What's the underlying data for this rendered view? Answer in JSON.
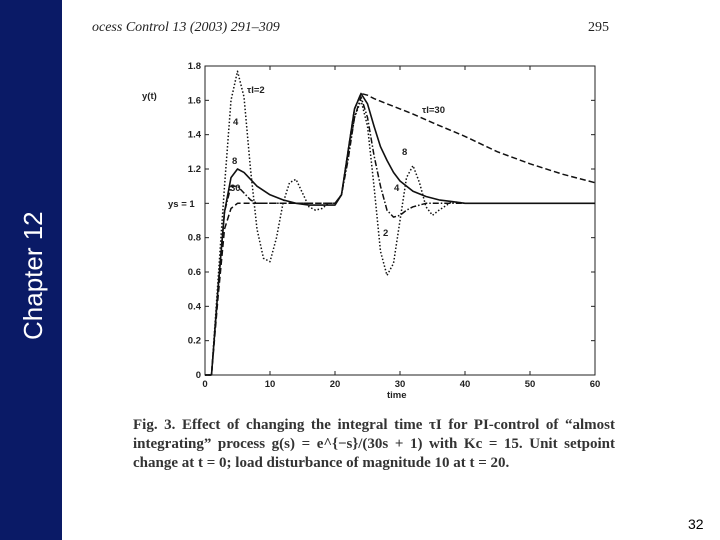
{
  "sidebar": {
    "chapter_label": "Chapter 12",
    "color": "#0a1a66"
  },
  "header": {
    "journal": "ocess Control 13 (2003) 291–309",
    "page": "295"
  },
  "figure": {
    "caption": "Fig. 3. Effect of changing the integral time τI for PI-control of “almost integrating” process g(s) = e^{−s}/(30s + 1) with Kc = 15. Unit setpoint change at t = 0; load disturbance of magnitude 10 at t = 20.",
    "chart_data": {
      "type": "line",
      "xlabel": "time",
      "ylabel": "y(t)",
      "ys_label": "ys = 1",
      "xlim": [
        0,
        60
      ],
      "ylim": [
        0,
        1.8
      ],
      "xticks": [
        "0",
        "10",
        "20",
        "30",
        "40",
        "50",
        "60"
      ],
      "yticks": [
        "0",
        "0.2",
        "0.4",
        "0.6",
        "0.8",
        "1",
        "1.2",
        "1.4",
        "1.6",
        "1.8"
      ],
      "annotations": [
        "τI=2",
        "4",
        "8",
        "30",
        "τI=30",
        "8",
        "4",
        "2"
      ],
      "series": [
        {
          "name": "τI=2",
          "style": "dotted",
          "x": [
            0,
            1,
            2,
            3,
            4,
            5,
            6,
            7,
            8,
            9,
            10,
            11,
            12,
            13,
            14,
            15,
            16,
            17,
            18,
            19,
            20,
            21,
            22,
            23,
            24,
            25,
            26,
            27,
            28,
            29,
            30,
            31,
            32,
            33,
            34,
            35,
            36,
            38,
            40,
            45,
            50,
            55,
            60
          ],
          "y": [
            0,
            0,
            0.55,
            1.1,
            1.6,
            1.77,
            1.62,
            1.2,
            0.85,
            0.68,
            0.66,
            0.8,
            1.0,
            1.12,
            1.14,
            1.06,
            0.98,
            0.96,
            0.97,
            1.0,
            1.0,
            1.05,
            1.28,
            1.5,
            1.6,
            1.45,
            1.1,
            0.72,
            0.58,
            0.65,
            0.9,
            1.15,
            1.22,
            1.12,
            0.98,
            0.93,
            0.96,
            1.01,
            1.0,
            1.0,
            1.0,
            1.0,
            1.0
          ]
        },
        {
          "name": "4",
          "style": "dashdot",
          "x": [
            0,
            1,
            2,
            3,
            4,
            5,
            6,
            7,
            8,
            9,
            10,
            12,
            14,
            16,
            18,
            20,
            21,
            22,
            23,
            24,
            25,
            26,
            27,
            28,
            29,
            30,
            31,
            32,
            33,
            34,
            36,
            38,
            40,
            45,
            50,
            55,
            60
          ],
          "y": [
            0,
            0,
            0.5,
            0.95,
            1.1,
            1.1,
            1.06,
            1.02,
            1.0,
            1.0,
            1.0,
            1.0,
            1.0,
            1.0,
            1.0,
            1.0,
            1.05,
            1.25,
            1.5,
            1.62,
            1.5,
            1.28,
            1.1,
            0.96,
            0.92,
            0.93,
            0.96,
            0.98,
            0.99,
            1.0,
            1.0,
            1.0,
            1.0,
            1.0,
            1.0,
            1.0,
            1.0
          ]
        },
        {
          "name": "8",
          "style": "solid",
          "x": [
            0,
            1,
            2,
            3,
            4,
            5,
            6,
            7,
            8,
            10,
            12,
            14,
            16,
            18,
            20,
            21,
            22,
            23,
            24,
            25,
            26,
            27,
            28,
            29,
            30,
            32,
            34,
            36,
            38,
            40,
            45,
            50,
            55,
            60
          ],
          "y": [
            0,
            0,
            0.5,
            0.95,
            1.15,
            1.2,
            1.18,
            1.14,
            1.1,
            1.05,
            1.02,
            1.0,
            0.99,
            0.99,
            0.99,
            1.05,
            1.3,
            1.55,
            1.64,
            1.58,
            1.45,
            1.33,
            1.25,
            1.18,
            1.13,
            1.07,
            1.04,
            1.02,
            1.01,
            1.0,
            1.0,
            1.0,
            1.0,
            1.0
          ]
        },
        {
          "name": "τI=30",
          "style": "dashed",
          "x": [
            0,
            1,
            2,
            3,
            4,
            5,
            6,
            8,
            10,
            12,
            14,
            16,
            18,
            20,
            21,
            22,
            23,
            24,
            25,
            26,
            28,
            30,
            32,
            35,
            40,
            45,
            50,
            55,
            60
          ],
          "y": [
            0,
            0,
            0.45,
            0.85,
            0.97,
            1.0,
            1.0,
            1.0,
            1.0,
            1.0,
            1.0,
            1.0,
            1.0,
            1.0,
            1.05,
            1.3,
            1.55,
            1.64,
            1.63,
            1.61,
            1.58,
            1.55,
            1.52,
            1.47,
            1.39,
            1.3,
            1.23,
            1.17,
            1.12
          ]
        }
      ]
    }
  },
  "page_number": "32"
}
